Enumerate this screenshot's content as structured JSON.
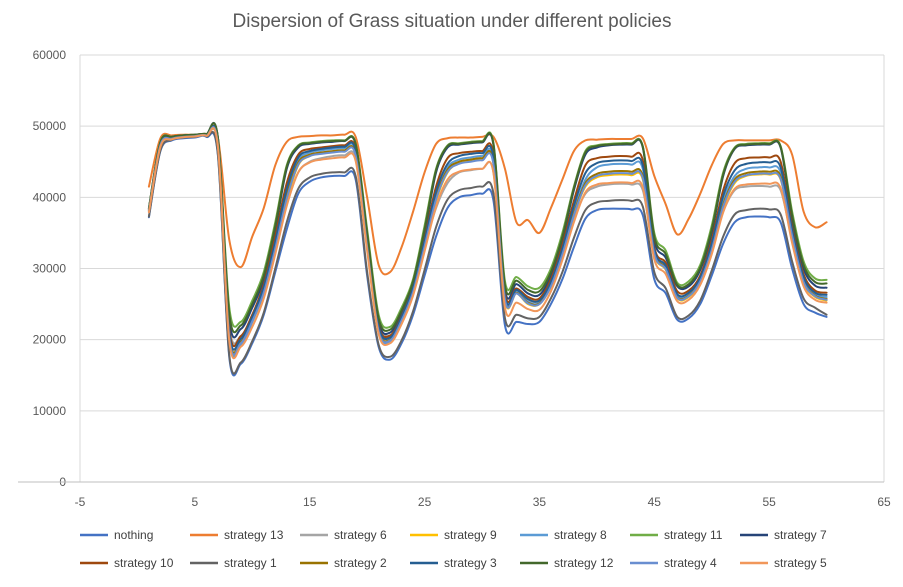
{
  "chart_data": {
    "type": "line",
    "title": "Dispersion of Grass situation under different policies",
    "xlabel": "",
    "ylabel": "",
    "xlim": [
      -5,
      65
    ],
    "ylim": [
      0,
      60000
    ],
    "x_ticks": [
      -5,
      5,
      15,
      25,
      35,
      45,
      55,
      65
    ],
    "y_ticks": [
      0,
      10000,
      20000,
      30000,
      40000,
      50000,
      60000
    ],
    "grid": "horizontal",
    "legend_position": "bottom",
    "x": [
      1,
      2,
      3,
      4,
      5,
      6,
      7,
      8,
      9,
      10,
      11,
      12,
      13,
      14,
      15,
      16,
      17,
      18,
      19,
      20,
      21,
      22,
      23,
      24,
      25,
      26,
      27,
      28,
      29,
      30,
      31,
      32,
      33,
      34,
      35,
      36,
      37,
      38,
      39,
      40,
      41,
      42,
      43,
      44,
      45,
      46,
      47,
      48,
      49,
      50,
      51,
      52,
      53,
      54,
      55,
      56,
      57,
      58,
      59,
      60
    ],
    "series": [
      {
        "name": "nothing",
        "color": "#4472C4",
        "values": [
          37200,
          46500,
          48000,
          48300,
          48400,
          48500,
          46000,
          17500,
          16600,
          19500,
          23500,
          29500,
          35500,
          40500,
          42200,
          42800,
          43000,
          43000,
          42500,
          29000,
          19000,
          17200,
          19500,
          23500,
          29000,
          34500,
          38500,
          40000,
          40300,
          40500,
          39500,
          22000,
          22500,
          22200,
          22500,
          25000,
          28500,
          33000,
          37000,
          38200,
          38400,
          38400,
          38300,
          37500,
          28500,
          26500,
          22800,
          23000,
          25000,
          29000,
          33500,
          36500,
          37200,
          37300,
          37200,
          36500,
          30000,
          25000,
          23800,
          23200
        ]
      },
      {
        "name": "strategy 13",
        "color": "#ED7D31",
        "values": [
          41500,
          48300,
          48700,
          48800,
          48800,
          48900,
          48400,
          34000,
          30200,
          34500,
          38500,
          44500,
          47800,
          48500,
          48600,
          48700,
          48700,
          48800,
          48500,
          40000,
          30500,
          29500,
          33000,
          38000,
          43500,
          47500,
          48300,
          48400,
          48400,
          48500,
          48500,
          44000,
          36500,
          36800,
          35000,
          38500,
          42500,
          46500,
          48000,
          48100,
          48200,
          48200,
          48200,
          48300,
          43000,
          39000,
          34800,
          37000,
          40500,
          44500,
          47500,
          48000,
          48000,
          48000,
          48000,
          48000,
          46000,
          38000,
          35800,
          36500
        ]
      },
      {
        "name": "strategy 6",
        "color": "#A5A5A5",
        "values": [
          38200,
          47500,
          48400,
          48600,
          48600,
          48700,
          47300,
          22000,
          20500,
          23500,
          27000,
          33000,
          39000,
          43500,
          45000,
          45500,
          45800,
          45900,
          45500,
          34000,
          22500,
          20500,
          23000,
          27000,
          33000,
          38500,
          42000,
          43500,
          43800,
          44000,
          43500,
          26000,
          26500,
          25500,
          25500,
          28000,
          32000,
          37000,
          40500,
          41500,
          41800,
          41900,
          41800,
          41000,
          32000,
          30000,
          26000,
          26500,
          28500,
          33000,
          38000,
          41000,
          41500,
          41600,
          41500,
          41000,
          34000,
          28500,
          26500,
          25800
        ]
      },
      {
        "name": "strategy 9",
        "color": "#FFC000",
        "values": [
          38000,
          47200,
          48200,
          48500,
          48600,
          48700,
          47500,
          20200,
          19400,
          22500,
          26500,
          32500,
          39500,
          44500,
          45800,
          46200,
          46400,
          46500,
          46000,
          33500,
          21000,
          19800,
          22500,
          26500,
          33000,
          39500,
          43500,
          44800,
          45200,
          45400,
          44800,
          25500,
          26500,
          25000,
          25000,
          27500,
          32000,
          37500,
          41500,
          42800,
          43100,
          43200,
          43100,
          42500,
          32000,
          29800,
          25800,
          26000,
          28000,
          32500,
          38500,
          42000,
          43000,
          43200,
          43200,
          42500,
          34500,
          28000,
          26000,
          25500
        ]
      },
      {
        "name": "strategy 8",
        "color": "#5B9BD5",
        "values": [
          38100,
          47300,
          48300,
          48500,
          48600,
          48700,
          47600,
          20000,
          19200,
          22500,
          26800,
          33200,
          40500,
          45200,
          46300,
          46600,
          46800,
          46900,
          46400,
          33200,
          21000,
          19800,
          22800,
          27000,
          33500,
          40000,
          44200,
          45300,
          45600,
          45800,
          45200,
          25800,
          26800,
          25300,
          25200,
          27800,
          32500,
          38000,
          42500,
          44200,
          44600,
          44700,
          44600,
          44000,
          32500,
          30200,
          26200,
          26400,
          28500,
          33000,
          39500,
          43000,
          44000,
          44200,
          44200,
          43500,
          35000,
          28500,
          26300,
          26000
        ]
      },
      {
        "name": "strategy 11",
        "color": "#70AD47",
        "values": [
          38500,
          47800,
          48500,
          48700,
          48800,
          48900,
          48500,
          24500,
          22500,
          25500,
          29500,
          36500,
          44500,
          47300,
          47700,
          47900,
          48000,
          48000,
          47600,
          35500,
          23500,
          21800,
          24500,
          28500,
          36000,
          44000,
          47300,
          47600,
          47800,
          47900,
          47600,
          28200,
          28800,
          27500,
          27300,
          30000,
          35000,
          41500,
          46500,
          47300,
          47500,
          47600,
          47600,
          47200,
          35000,
          32500,
          28000,
          28200,
          30500,
          36000,
          43500,
          47000,
          47500,
          47600,
          47600,
          47200,
          38000,
          31000,
          28600,
          28400
        ]
      },
      {
        "name": "strategy 7",
        "color": "#264478",
        "values": [
          38400,
          47700,
          48500,
          48700,
          48800,
          48900,
          48400,
          22800,
          21500,
          24500,
          28500,
          35500,
          44000,
          47000,
          47500,
          47700,
          47800,
          47900,
          47400,
          34500,
          22500,
          21000,
          23800,
          28000,
          35000,
          43500,
          47000,
          47400,
          47600,
          47700,
          47300,
          27000,
          27800,
          26500,
          26300,
          29000,
          34000,
          41000,
          46000,
          47000,
          47300,
          47400,
          47400,
          47000,
          34000,
          31500,
          27500,
          27500,
          29800,
          35000,
          43000,
          46800,
          47300,
          47400,
          47400,
          47000,
          37000,
          30000,
          27600,
          27300
        ]
      },
      {
        "name": "strategy 10",
        "color": "#9E480E",
        "values": [
          38300,
          47600,
          48400,
          48600,
          48700,
          48800,
          47800,
          21500,
          20500,
          23500,
          27800,
          34500,
          42000,
          46000,
          46800,
          47000,
          47200,
          47300,
          46800,
          34000,
          22000,
          20600,
          23300,
          27600,
          34200,
          41500,
          45500,
          46200,
          46400,
          46500,
          46000,
          26500,
          27200,
          26000,
          25800,
          28500,
          33300,
          39500,
          44500,
          45500,
          45700,
          45800,
          45700,
          45200,
          33000,
          30800,
          26800,
          26900,
          29000,
          34000,
          41000,
          44800,
          45500,
          45600,
          45600,
          45000,
          35800,
          29200,
          26900,
          26600
        ]
      },
      {
        "name": "strategy 1",
        "color": "#636363",
        "values": [
          37300,
          46600,
          48100,
          48400,
          48500,
          48600,
          46200,
          17800,
          16800,
          19800,
          23800,
          30000,
          36500,
          41200,
          42800,
          43300,
          43500,
          43500,
          43000,
          29500,
          19300,
          17600,
          19900,
          24000,
          29800,
          35800,
          39700,
          41000,
          41300,
          41500,
          40500,
          23000,
          23500,
          23000,
          23200,
          25800,
          29500,
          34300,
          38200,
          39300,
          39500,
          39600,
          39500,
          38700,
          29500,
          27200,
          23200,
          23400,
          25500,
          29700,
          34500,
          37600,
          38200,
          38400,
          38300,
          37600,
          31000,
          25800,
          24500,
          23500
        ]
      },
      {
        "name": "strategy 2",
        "color": "#997300",
        "values": [
          38150,
          47400,
          48300,
          48550,
          48650,
          48750,
          47600,
          20600,
          19700,
          22800,
          26900,
          33200,
          40300,
          44900,
          46000,
          46300,
          46500,
          46600,
          46100,
          33300,
          21400,
          20000,
          22900,
          26900,
          33400,
          40000,
          43900,
          45000,
          45300,
          45500,
          44900,
          25700,
          26600,
          25200,
          25100,
          27600,
          32200,
          37800,
          42000,
          43300,
          43600,
          43700,
          43600,
          43000,
          32300,
          30000,
          26000,
          26200,
          28300,
          32800,
          39000,
          42500,
          43400,
          43600,
          43600,
          42900,
          34800,
          28200,
          26200,
          25700
        ]
      },
      {
        "name": "strategy 3",
        "color": "#255E91",
        "values": [
          38250,
          47550,
          48350,
          48600,
          48700,
          48800,
          47700,
          21000,
          20100,
          23200,
          27400,
          33800,
          41200,
          45600,
          46500,
          46800,
          47000,
          47100,
          46600,
          33700,
          21800,
          20300,
          23200,
          27300,
          33900,
          40800,
          44700,
          45800,
          46100,
          46200,
          45600,
          26100,
          27000,
          25700,
          25500,
          28100,
          32800,
          38800,
          43400,
          44800,
          45100,
          45200,
          45100,
          44500,
          32700,
          30400,
          26400,
          26600,
          28700,
          33500,
          40200,
          43800,
          44700,
          44900,
          44900,
          44200,
          35400,
          28800,
          26600,
          26300
        ]
      },
      {
        "name": "strategy 12",
        "color": "#43682B",
        "values": [
          38450,
          47750,
          48500,
          48700,
          48800,
          48900,
          48450,
          23600,
          22000,
          25000,
          29000,
          36000,
          44300,
          47200,
          47600,
          47800,
          47900,
          47950,
          47500,
          35000,
          23000,
          21400,
          24100,
          28200,
          35500,
          43800,
          47200,
          47500,
          47700,
          47800,
          47450,
          27600,
          28300,
          27000,
          26800,
          29500,
          34500,
          41300,
          46300,
          47200,
          47400,
          47500,
          47500,
          47100,
          34500,
          32000,
          27700,
          27800,
          30100,
          35500,
          43200,
          46900,
          47400,
          47500,
          47500,
          47100,
          37500,
          30500,
          28100,
          27900
        ]
      },
      {
        "name": "strategy 4",
        "color": "#698ED0",
        "values": [
          38050,
          47350,
          48250,
          48500,
          48600,
          48700,
          47450,
          20300,
          19500,
          22600,
          26600,
          32800,
          39800,
          44600,
          45800,
          46100,
          46300,
          46400,
          45900,
          33000,
          21200,
          19900,
          22700,
          26700,
          33100,
          39700,
          43600,
          44700,
          45000,
          45200,
          44600,
          25600,
          26500,
          25100,
          25000,
          27500,
          32000,
          37500,
          41700,
          43000,
          43300,
          43400,
          43300,
          42700,
          32100,
          29900,
          25900,
          26100,
          28200,
          32600,
          38700,
          42200,
          43100,
          43300,
          43300,
          42600,
          34600,
          28100,
          26100,
          25600
        ]
      },
      {
        "name": "strategy 5",
        "color": "#F1975A",
        "values": [
          37900,
          47100,
          48150,
          48450,
          48550,
          48650,
          47200,
          19800,
          19000,
          21800,
          25800,
          32000,
          38800,
          43500,
          44900,
          45300,
          45500,
          45600,
          45100,
          32500,
          20800,
          19500,
          22200,
          26200,
          32400,
          38700,
          42500,
          43600,
          43900,
          44000,
          43400,
          24500,
          25200,
          24300,
          24200,
          26800,
          31200,
          36500,
          40700,
          41800,
          42000,
          42100,
          42000,
          41400,
          31300,
          29200,
          25400,
          25600,
          27700,
          32000,
          37900,
          41200,
          41800,
          41900,
          41900,
          41300,
          33600,
          27500,
          25600,
          25200
        ]
      }
    ]
  }
}
